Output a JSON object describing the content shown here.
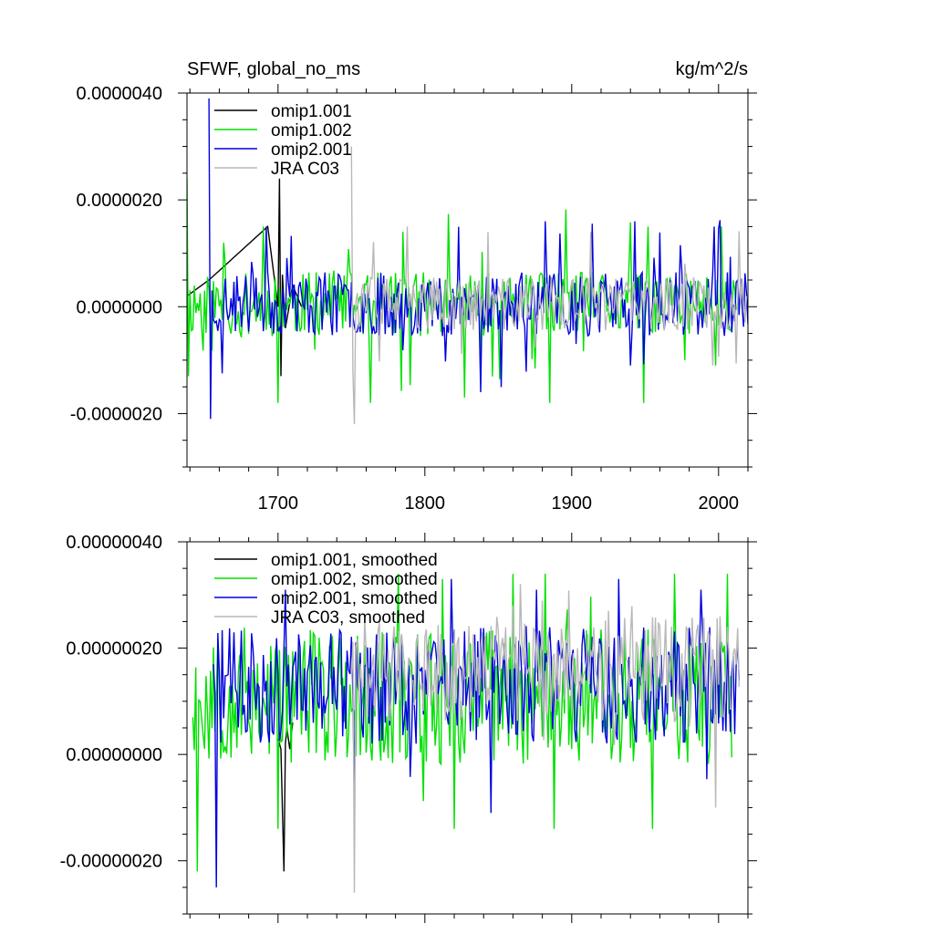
{
  "chart_data": [
    {
      "type": "line",
      "title": "SFWF, global_no_ms",
      "units": "kg/m^2/s",
      "xlabel": "",
      "ylabel": "",
      "xlim": [
        1638,
        2020
      ],
      "ylim": [
        -3e-06,
        4e-06
      ],
      "x_major_ticks": [
        1700,
        1800,
        1900,
        2000
      ],
      "x_tick_labels": [
        "1700",
        "1800",
        "1900",
        "2000"
      ],
      "y_major_ticks": [
        4e-06,
        2e-06,
        0.0,
        -2e-06
      ],
      "y_tick_labels": [
        "0.0000040",
        "0.0000020",
        "0.0000000",
        "-0.0000020"
      ],
      "legend": {
        "placement": "top-left",
        "entries": [
          "omip1.001",
          "omip1.002",
          "omip2.001",
          "JRA C03"
        ]
      },
      "series": [
        {
          "name": "omip1.001",
          "color": "#000000",
          "x": [
            1638,
            1653,
            1693,
            1700,
            1701,
            1702,
            1703,
            1705,
            1710,
            1716
          ],
          "y": [
            2e-07,
            5e-07,
            1.5e-06,
            0.0,
            2.4e-06,
            -1.3e-06,
            6e-07,
            -4e-07,
            4e-07,
            0.0
          ]
        },
        {
          "name": "omip1.002",
          "color": "#00e000",
          "samples": {
            "start": 1638,
            "end": 2012,
            "step": 1,
            "seed": 11,
            "base": 5e-08,
            "amp": 6e-07,
            "spike_prob": 0.06,
            "spike_amp": 1.2e-06
          },
          "points": [
            [
              1638,
              2.4e-06
            ],
            [
              1639,
              -1.3e-06
            ],
            [
              1650,
              3e-07
            ],
            [
              1700,
              -1.8e-06
            ],
            [
              1763,
              -1.8e-06
            ],
            [
              1827,
              -1.7e-06
            ],
            [
              1885,
              -1.8e-06
            ],
            [
              1949,
              -1.8e-06
            ],
            [
              1998,
              -1.1e-06
            ],
            [
              1690,
              1.5e-06
            ],
            [
              1785,
              1.4e-06
            ],
            [
              1952,
              1.5e-06
            ],
            [
              2002,
              1.5e-06
            ]
          ]
        },
        {
          "name": "omip2.001",
          "color": "#0000e0",
          "samples": {
            "start": 1653,
            "end": 2020,
            "step": 1,
            "seed": 23,
            "base": 5e-08,
            "amp": 6e-07,
            "spike_prob": 0.05,
            "spike_amp": 1e-06
          },
          "points": [
            [
              1653,
              3.9e-06
            ],
            [
              1654,
              -2.1e-06
            ],
            [
              1692,
              1.5e-06
            ],
            [
              1838,
              -1.6e-06
            ],
            [
              1882,
              1.6e-06
            ],
            [
              1943,
              1.6e-06
            ],
            [
              1997,
              1.5e-06
            ],
            [
              1940,
              -1.1e-06
            ]
          ]
        },
        {
          "name": "JRA C03",
          "color": "#b8b8b8",
          "samples": {
            "start": 1750,
            "end": 2019,
            "step": 1,
            "seed": 37,
            "base": 5e-08,
            "amp": 5e-07,
            "spike_prob": 0.04,
            "spike_amp": 9e-07
          },
          "points": [
            [
              1750,
              3e-06
            ],
            [
              1752,
              -2.2e-06
            ],
            [
              1788,
              1.5e-06
            ],
            [
              1843,
              1.4e-06
            ],
            [
              1913,
              1.4e-06
            ],
            [
              1996,
              -1.1e-06
            ]
          ]
        }
      ]
    },
    {
      "type": "line",
      "title": "",
      "xlabel": "",
      "ylabel": "",
      "xlim": [
        1638,
        2020
      ],
      "ylim": [
        -3e-07,
        4e-07
      ],
      "x_major_ticks": [
        1700,
        1800,
        1900,
        2000
      ],
      "x_tick_labels": [
        "",
        "",
        "",
        ""
      ],
      "y_major_ticks": [
        4e-07,
        2e-07,
        0.0,
        -2e-07
      ],
      "y_tick_labels": [
        "0.00000040",
        "0.00000020",
        "0.00000000",
        "-0.00000020"
      ],
      "legend": {
        "placement": "top-left",
        "entries": [
          "omip1.001, smoothed",
          "omip1.002, smoothed",
          "omip2.001, smoothed",
          "JRA C03, smoothed"
        ]
      },
      "series": [
        {
          "name": "omip1.001, smoothed",
          "color": "#000000",
          "x": [
            1700,
            1702,
            1704,
            1705,
            1706,
            1708,
            1710
          ],
          "y": [
            3e-08,
            1e-08,
            -2.2e-07,
            2e-08,
            5e-08,
            1e-08,
            6e-08
          ]
        },
        {
          "name": "omip1.002, smoothed",
          "color": "#00e000",
          "samples": {
            "start": 1642,
            "end": 2009,
            "step": 1,
            "seed": 53,
            "base": 1.1e-07,
            "amp": 1.3e-07,
            "spike_prob": 0.05,
            "spike_amp": 1e-07
          },
          "points": [
            [
              1642,
              7e-08
            ],
            [
              1645,
              -2.2e-07
            ],
            [
              1700,
              -1.4e-07
            ],
            [
              1782,
              3.4e-07
            ],
            [
              1812,
              3.3e-07
            ],
            [
              1882,
              3.4e-07
            ],
            [
              1970,
              3.4e-07
            ],
            [
              2006,
              3.4e-07
            ],
            [
              1820,
              -1.4e-07
            ],
            [
              1888,
              -1.4e-07
            ],
            [
              1955,
              -1.4e-07
            ]
          ]
        },
        {
          "name": "omip2.001, smoothed",
          "color": "#0000e0",
          "samples": {
            "start": 1656,
            "end": 2014,
            "step": 1,
            "seed": 71,
            "base": 1.3e-07,
            "amp": 1.1e-07,
            "spike_prob": 0.05,
            "spike_amp": 9e-08
          },
          "points": [
            [
              1656,
              1.7e-07
            ],
            [
              1658,
              -2.5e-07
            ],
            [
              1705,
              3.1e-07
            ],
            [
              1818,
              3.3e-07
            ],
            [
              1876,
              3.1e-07
            ],
            [
              1932,
              3.3e-07
            ],
            [
              1988,
              3.1e-07
            ],
            [
              1752,
              -8e-08
            ],
            [
              1845,
              -1.1e-07
            ]
          ]
        },
        {
          "name": "JRA C03, smoothed",
          "color": "#b8b8b8",
          "samples": {
            "start": 1750,
            "end": 2014,
            "step": 1,
            "seed": 89,
            "base": 1.6e-07,
            "amp": 1e-07,
            "spike_prob": 0.04,
            "spike_amp": 8e-08
          },
          "points": [
            [
              1750,
              1.5e-07
            ],
            [
              1752,
              -2.6e-07
            ],
            [
              1760,
              2e-07
            ],
            [
              1860,
              2.8e-07
            ],
            [
              1925,
              2.7e-07
            ],
            [
              2010,
              1.9e-07
            ],
            [
              1998,
              -1e-07
            ]
          ]
        }
      ]
    }
  ]
}
